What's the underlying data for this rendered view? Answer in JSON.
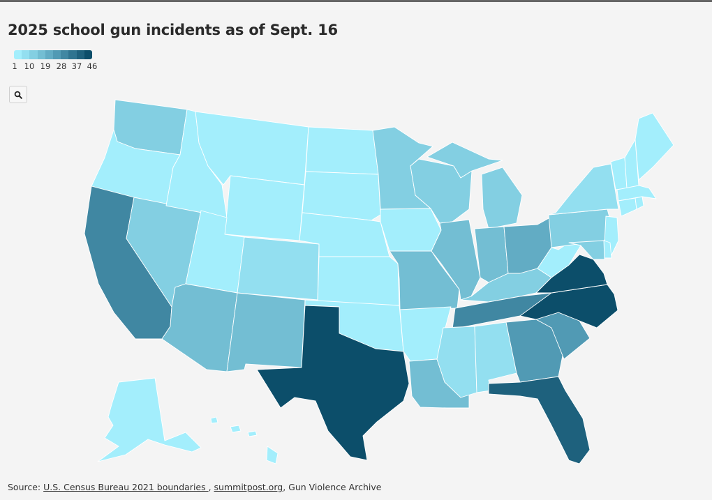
{
  "title": "2025 school gun incidents as of Sept. 16",
  "legend": {
    "colors": [
      "#a3eefc",
      "#93dff0",
      "#83cfe2",
      "#73bed3",
      "#62acc4",
      "#519ab4",
      "#4087a2",
      "#2f7490",
      "#1e617d",
      "#0c4e6a"
    ],
    "ticks": [
      "1",
      "10",
      "19",
      "28",
      "37",
      "46"
    ],
    "min": 1,
    "max": 46
  },
  "controls": {
    "zoom_icon": "search-icon"
  },
  "states": [
    {
      "abbr": "WA",
      "value": 12
    },
    {
      "abbr": "OR",
      "value": 1
    },
    {
      "abbr": "CA",
      "value": 33
    },
    {
      "abbr": "NV",
      "value": 9
    },
    {
      "abbr": "ID",
      "value": 1
    },
    {
      "abbr": "MT",
      "value": 1
    },
    {
      "abbr": "WY",
      "value": 1
    },
    {
      "abbr": "UT",
      "value": 1
    },
    {
      "abbr": "AZ",
      "value": 18
    },
    {
      "abbr": "CO",
      "value": 8
    },
    {
      "abbr": "NM",
      "value": 18
    },
    {
      "abbr": "ND",
      "value": 1
    },
    {
      "abbr": "SD",
      "value": 1
    },
    {
      "abbr": "NE",
      "value": 1
    },
    {
      "abbr": "KS",
      "value": 1
    },
    {
      "abbr": "OK",
      "value": 1
    },
    {
      "abbr": "TX",
      "value": 46
    },
    {
      "abbr": "MN",
      "value": 9
    },
    {
      "abbr": "IA",
      "value": 1
    },
    {
      "abbr": "MO",
      "value": 14
    },
    {
      "abbr": "AR",
      "value": 1
    },
    {
      "abbr": "LA",
      "value": 16
    },
    {
      "abbr": "WI",
      "value": 9
    },
    {
      "abbr": "IL",
      "value": 16
    },
    {
      "abbr": "MI",
      "value": 10
    },
    {
      "abbr": "IN",
      "value": 14
    },
    {
      "abbr": "OH",
      "value": 22
    },
    {
      "abbr": "KY",
      "value": 10
    },
    {
      "abbr": "TN",
      "value": 33
    },
    {
      "abbr": "MS",
      "value": 4
    },
    {
      "abbr": "AL",
      "value": 8
    },
    {
      "abbr": "GA",
      "value": 28
    },
    {
      "abbr": "FL",
      "value": 40
    },
    {
      "abbr": "SC",
      "value": 28
    },
    {
      "abbr": "NC",
      "value": 46
    },
    {
      "abbr": "VA",
      "value": 46
    },
    {
      "abbr": "WV",
      "value": 1
    },
    {
      "abbr": "PA",
      "value": 12
    },
    {
      "abbr": "NY",
      "value": 6
    },
    {
      "abbr": "VT",
      "value": 1
    },
    {
      "abbr": "NH",
      "value": 1
    },
    {
      "abbr": "ME",
      "value": 1
    },
    {
      "abbr": "MA",
      "value": 3
    },
    {
      "abbr": "CT",
      "value": 1
    },
    {
      "abbr": "RI",
      "value": 3
    },
    {
      "abbr": "NJ",
      "value": 1
    },
    {
      "abbr": "DE",
      "value": 1
    },
    {
      "abbr": "MD",
      "value": 12
    },
    {
      "abbr": "AK",
      "value": 1
    },
    {
      "abbr": "HI",
      "value": 3
    }
  ],
  "source": {
    "prefix": "Source: ",
    "link1": "U.S. Census Bureau 2021 boundaries ",
    "sep": ", ",
    "link2": "summitpost.org",
    "suffix": ", Gun Violence Archive"
  }
}
